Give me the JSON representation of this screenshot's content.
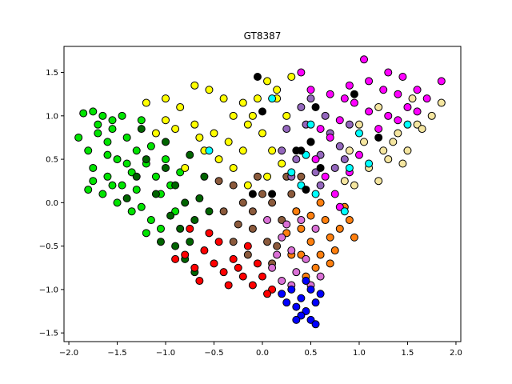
{
  "chart_data": {
    "type": "scatter",
    "title": "GT8387",
    "xlabel": "",
    "ylabel": "",
    "xlim": [
      -2.05,
      2.05
    ],
    "ylim": [
      -1.6,
      1.8
    ],
    "xticks": [
      -2.0,
      -1.5,
      -1.0,
      -0.5,
      0.0,
      0.5,
      1.0,
      1.5,
      2.0
    ],
    "xtick_labels": [
      "−2.0",
      "−1.5",
      "−1.0",
      "−0.5",
      "0.0",
      "0.5",
      "1.0",
      "1.5",
      "2.0"
    ],
    "yticks": [
      -1.5,
      -1.0,
      -0.5,
      0.0,
      0.5,
      1.0,
      1.5
    ],
    "ytick_labels": [
      "−1.5",
      "−1.0",
      "−0.5",
      "0.0",
      "0.5",
      "1.0",
      "1.5"
    ],
    "grid": false,
    "marker_edge_color": "#000000",
    "series": [
      {
        "color": "#00e400",
        "points": [
          [
            -1.85,
            1.03
          ],
          [
            -1.75,
            1.05
          ],
          [
            -1.65,
            1.0
          ],
          [
            -1.55,
            0.95
          ],
          [
            -1.7,
            0.8
          ],
          [
            -1.6,
            0.7
          ],
          [
            -1.8,
            0.6
          ],
          [
            -1.5,
            0.5
          ],
          [
            -1.75,
            0.4
          ],
          [
            -1.6,
            0.3
          ],
          [
            -1.45,
            0.2
          ],
          [
            -1.8,
            0.15
          ],
          [
            -1.65,
            0.1
          ],
          [
            -1.5,
            0.0
          ],
          [
            -1.35,
            -0.1
          ],
          [
            -1.25,
            -0.05
          ],
          [
            -1.15,
            -0.2
          ],
          [
            -1.55,
            0.85
          ],
          [
            -1.4,
            0.75
          ],
          [
            -1.3,
            0.6
          ],
          [
            -1.2,
            0.45
          ],
          [
            -1.35,
            0.35
          ],
          [
            -1.1,
            0.3
          ],
          [
            -1.05,
            0.1
          ],
          [
            -0.95,
            0.2
          ],
          [
            -1.25,
            0.95
          ],
          [
            -1.45,
            1.0
          ],
          [
            -1.7,
            0.9
          ],
          [
            -1.9,
            0.75
          ],
          [
            -1.6,
            0.55
          ],
          [
            -1.4,
            0.45
          ],
          [
            -1.05,
            -0.3
          ],
          [
            -1.2,
            -0.35
          ],
          [
            -0.9,
            -0.1
          ],
          [
            -1.3,
            0.15
          ],
          [
            -1.75,
            0.25
          ],
          [
            -1.55,
            0.2
          ],
          [
            -1.0,
            0.5
          ],
          [
            -0.85,
            0.35
          ],
          [
            -1.15,
            0.65
          ]
        ]
      },
      {
        "color": "#006400",
        "points": [
          [
            -1.2,
            0.5
          ],
          [
            -1.0,
            0.4
          ],
          [
            -0.9,
            0.2
          ],
          [
            -0.8,
            0.0
          ],
          [
            -1.1,
            0.1
          ],
          [
            -0.95,
            -0.15
          ],
          [
            -0.85,
            -0.3
          ],
          [
            -0.75,
            -0.45
          ],
          [
            -0.9,
            -0.5
          ],
          [
            -1.05,
            -0.45
          ],
          [
            -0.7,
            -0.2
          ],
          [
            -0.65,
            0.05
          ],
          [
            -0.6,
            0.3
          ],
          [
            -0.75,
            0.55
          ],
          [
            -1.3,
            0.3
          ],
          [
            -1.4,
            0.05
          ],
          [
            -0.55,
            -0.1
          ],
          [
            -0.8,
            -0.65
          ],
          [
            -0.7,
            -0.8
          ],
          [
            -1.0,
            0.7
          ],
          [
            -1.25,
            0.85
          ]
        ]
      },
      {
        "color": "#ffff00",
        "points": [
          [
            -1.2,
            1.15
          ],
          [
            -1.0,
            1.2
          ],
          [
            -0.85,
            1.1
          ],
          [
            -0.7,
            1.35
          ],
          [
            -0.55,
            1.3
          ],
          [
            -0.4,
            1.2
          ],
          [
            -0.2,
            1.15
          ],
          [
            -0.05,
            1.2
          ],
          [
            0.05,
            1.4
          ],
          [
            0.15,
            1.3
          ],
          [
            -0.3,
            1.0
          ],
          [
            -0.15,
            0.9
          ],
          [
            0.0,
            0.8
          ],
          [
            -0.5,
            0.8
          ],
          [
            -0.7,
            0.9
          ],
          [
            -0.9,
            0.85
          ],
          [
            -0.6,
            0.6
          ],
          [
            -0.45,
            0.5
          ],
          [
            -0.3,
            0.4
          ],
          [
            -0.2,
            0.6
          ],
          [
            0.1,
            0.6
          ],
          [
            0.2,
            0.45
          ],
          [
            0.25,
            1.0
          ],
          [
            -0.1,
            1.0
          ],
          [
            -0.8,
            0.4
          ],
          [
            -1.0,
            0.95
          ],
          [
            -0.35,
            0.7
          ],
          [
            0.05,
            0.3
          ],
          [
            -0.15,
            0.2
          ],
          [
            0.3,
            1.45
          ],
          [
            -1.1,
            0.8
          ],
          [
            -0.65,
            0.75
          ],
          [
            0.15,
            1.2
          ]
        ]
      },
      {
        "color": "#8b5a3c",
        "points": [
          [
            -0.3,
            0.2
          ],
          [
            -0.2,
            0.0
          ],
          [
            -0.1,
            -0.1
          ],
          [
            0.0,
            0.1
          ],
          [
            0.1,
            0.0
          ],
          [
            0.2,
            -0.2
          ],
          [
            -0.1,
            -0.3
          ],
          [
            -0.25,
            -0.25
          ],
          [
            0.05,
            -0.45
          ],
          [
            0.15,
            -0.5
          ],
          [
            0.3,
            0.1
          ],
          [
            0.35,
            -0.1
          ],
          [
            -0.4,
            -0.1
          ],
          [
            -0.3,
            -0.45
          ],
          [
            -0.05,
            0.3
          ],
          [
            0.25,
            0.3
          ],
          [
            -0.45,
            0.25
          ],
          [
            0.4,
            0.3
          ],
          [
            0.1,
            -0.7
          ],
          [
            -0.15,
            -0.6
          ]
        ]
      },
      {
        "color": "#ff0000",
        "points": [
          [
            -0.8,
            -0.6
          ],
          [
            -0.7,
            -0.75
          ],
          [
            -0.6,
            -0.55
          ],
          [
            -0.5,
            -0.7
          ],
          [
            -0.4,
            -0.8
          ],
          [
            -0.3,
            -0.65
          ],
          [
            -0.2,
            -0.85
          ],
          [
            -0.1,
            -0.95
          ],
          [
            0.0,
            -0.85
          ],
          [
            0.1,
            -1.0
          ],
          [
            -0.45,
            -0.45
          ],
          [
            -0.65,
            -0.9
          ],
          [
            -0.35,
            -0.95
          ],
          [
            -0.15,
            -0.5
          ],
          [
            0.05,
            -1.05
          ],
          [
            -0.55,
            -0.35
          ],
          [
            -0.25,
            -0.75
          ],
          [
            -0.05,
            -0.7
          ],
          [
            -0.9,
            -0.65
          ],
          [
            -0.75,
            -0.3
          ]
        ]
      },
      {
        "color": "#ff7f0e",
        "points": [
          [
            0.4,
            -0.3
          ],
          [
            0.5,
            -0.45
          ],
          [
            0.6,
            -0.6
          ],
          [
            0.7,
            -0.4
          ],
          [
            0.8,
            -0.3
          ],
          [
            0.55,
            -0.75
          ],
          [
            0.45,
            -0.85
          ],
          [
            0.3,
            -0.6
          ],
          [
            0.65,
            -0.2
          ],
          [
            0.9,
            -0.2
          ],
          [
            0.75,
            -0.55
          ],
          [
            0.35,
            -0.1
          ],
          [
            0.5,
            -0.15
          ],
          [
            0.85,
            -0.05
          ],
          [
            0.6,
            0.0
          ],
          [
            0.95,
            -0.4
          ],
          [
            0.25,
            -0.35
          ],
          [
            0.4,
            -0.6
          ],
          [
            0.7,
            -0.7
          ]
        ]
      },
      {
        "color": "#da70d6",
        "points": [
          [
            0.2,
            -0.4
          ],
          [
            0.3,
            -0.55
          ],
          [
            0.35,
            -0.8
          ],
          [
            0.45,
            -0.65
          ],
          [
            0.2,
            -0.9
          ],
          [
            0.1,
            -0.75
          ],
          [
            0.5,
            -0.95
          ],
          [
            0.25,
            -0.25
          ],
          [
            0.4,
            -0.2
          ],
          [
            0.55,
            -0.3
          ],
          [
            0.15,
            -0.6
          ],
          [
            0.3,
            -0.95
          ],
          [
            0.6,
            -0.85
          ],
          [
            0.05,
            -0.2
          ]
        ]
      },
      {
        "color": "#0000ff",
        "points": [
          [
            0.3,
            -1.0
          ],
          [
            0.4,
            -1.1
          ],
          [
            0.5,
            -1.0
          ],
          [
            0.45,
            -1.25
          ],
          [
            0.35,
            -1.2
          ],
          [
            0.55,
            -1.15
          ],
          [
            0.25,
            -1.15
          ],
          [
            0.5,
            -1.35
          ],
          [
            0.4,
            -1.3
          ],
          [
            0.6,
            -1.05
          ],
          [
            0.55,
            -1.4
          ],
          [
            0.2,
            -1.05
          ],
          [
            0.45,
            -0.9
          ],
          [
            0.35,
            -1.35
          ]
        ]
      },
      {
        "color": "#9467bd",
        "points": [
          [
            0.2,
            0.6
          ],
          [
            0.35,
            0.5
          ],
          [
            0.5,
            0.7
          ],
          [
            0.6,
            0.55
          ],
          [
            0.7,
            0.8
          ],
          [
            0.8,
            0.65
          ],
          [
            0.45,
            0.9
          ],
          [
            0.3,
            0.3
          ],
          [
            0.55,
            0.35
          ],
          [
            0.75,
            0.4
          ],
          [
            0.9,
            0.9
          ],
          [
            0.65,
            1.0
          ],
          [
            0.4,
            1.1
          ],
          [
            0.25,
            0.85
          ],
          [
            0.85,
            0.5
          ],
          [
            0.6,
            0.2
          ],
          [
            0.5,
            1.2
          ]
        ]
      },
      {
        "color": "#ff00ff",
        "points": [
          [
            0.5,
            1.3
          ],
          [
            0.7,
            1.25
          ],
          [
            0.9,
            1.35
          ],
          [
            1.1,
            1.4
          ],
          [
            1.3,
            1.5
          ],
          [
            1.25,
            1.3
          ],
          [
            1.45,
            1.45
          ],
          [
            1.6,
            1.3
          ],
          [
            1.85,
            1.4
          ],
          [
            1.7,
            1.2
          ],
          [
            1.5,
            1.1
          ],
          [
            1.3,
            1.0
          ],
          [
            1.1,
            1.05
          ],
          [
            0.95,
            1.15
          ],
          [
            0.8,
            0.95
          ],
          [
            0.7,
            0.75
          ],
          [
            0.6,
            0.85
          ],
          [
            1.05,
            1.65
          ],
          [
            0.4,
            1.5
          ],
          [
            0.55,
            0.5
          ],
          [
            0.65,
            0.3
          ],
          [
            0.75,
            0.1
          ],
          [
            0.8,
            -0.05
          ],
          [
            0.9,
            0.35
          ],
          [
            1.0,
            0.55
          ],
          [
            1.2,
            0.85
          ],
          [
            1.4,
            0.95
          ],
          [
            1.6,
            1.05
          ],
          [
            1.4,
            1.25
          ],
          [
            0.85,
            1.2
          ]
        ]
      },
      {
        "color": "#f5e6a0",
        "points": [
          [
            1.0,
            0.9
          ],
          [
            1.2,
            1.1
          ],
          [
            1.4,
            0.8
          ],
          [
            1.6,
            0.9
          ],
          [
            1.75,
            1.0
          ],
          [
            1.85,
            1.15
          ],
          [
            1.5,
            0.6
          ],
          [
            1.3,
            0.5
          ],
          [
            1.1,
            0.4
          ],
          [
            0.95,
            0.2
          ],
          [
            1.2,
            0.25
          ],
          [
            1.35,
            0.7
          ],
          [
            1.55,
            1.2
          ],
          [
            1.65,
            0.85
          ],
          [
            0.9,
            0.6
          ],
          [
            1.05,
            0.7
          ],
          [
            1.25,
            0.6
          ],
          [
            0.85,
            0.25
          ],
          [
            1.45,
            0.45
          ]
        ]
      },
      {
        "color": "#00ffff",
        "points": [
          [
            0.1,
            1.2
          ],
          [
            0.45,
            0.55
          ],
          [
            0.5,
            0.9
          ],
          [
            0.3,
            0.35
          ],
          [
            0.55,
            0.1
          ],
          [
            0.9,
            0.4
          ],
          [
            1.0,
            0.8
          ],
          [
            1.1,
            0.45
          ],
          [
            1.5,
            0.9
          ],
          [
            0.85,
            -0.1
          ],
          [
            -0.55,
            0.6
          ],
          [
            0.4,
            0.2
          ]
        ]
      },
      {
        "color": "#000000",
        "points": [
          [
            -0.05,
            1.45
          ],
          [
            0.0,
            1.05
          ],
          [
            0.5,
            0.7
          ],
          [
            0.4,
            0.6
          ],
          [
            0.6,
            0.4
          ],
          [
            0.1,
            0.1
          ],
          [
            -0.1,
            0.1
          ],
          [
            1.2,
            0.75
          ],
          [
            0.95,
            1.25
          ],
          [
            0.55,
            1.1
          ],
          [
            0.45,
            0.15
          ],
          [
            0.35,
            0.6
          ]
        ]
      }
    ]
  }
}
